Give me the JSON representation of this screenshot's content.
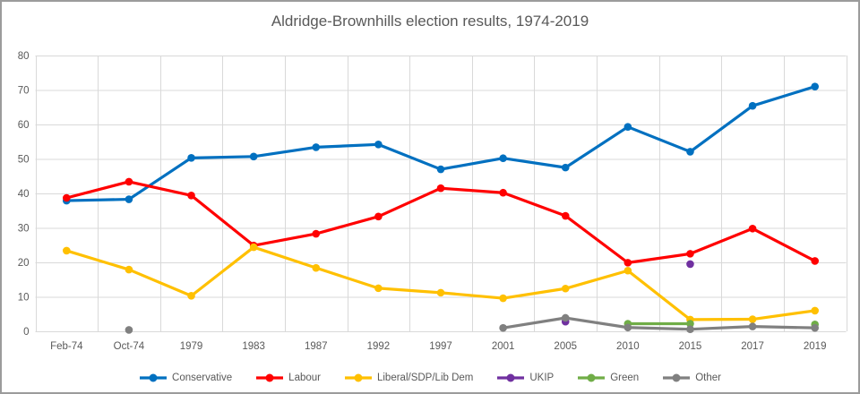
{
  "chart_data": {
    "type": "line",
    "title": "Aldridge-Brownhills election results, 1974-2019",
    "categories": [
      "Feb-74",
      "Oct-74",
      "1979",
      "1983",
      "1987",
      "1992",
      "1997",
      "2001",
      "2005",
      "2010",
      "2015",
      "2017",
      "2019"
    ],
    "series": [
      {
        "name": "Conservative",
        "color": "#0070C0",
        "values": [
          37.9,
          38.3,
          50.3,
          50.7,
          53.4,
          54.2,
          47.0,
          50.2,
          47.5,
          59.3,
          52.1,
          65.4,
          71.0
        ]
      },
      {
        "name": "Labour",
        "color": "#FF0000",
        "values": [
          38.7,
          43.4,
          39.4,
          24.9,
          28.3,
          33.3,
          41.5,
          40.2,
          33.5,
          19.9,
          22.5,
          29.8,
          20.4
        ]
      },
      {
        "name": "Liberal/SDP/Lib Dem",
        "color": "#FFC000",
        "values": [
          23.4,
          17.9,
          10.3,
          24.4,
          18.4,
          12.5,
          11.2,
          9.6,
          12.4,
          17.6,
          3.4,
          3.5,
          6.0
        ]
      },
      {
        "name": "UKIP",
        "color": "#7030A0",
        "values": [
          null,
          null,
          null,
          null,
          null,
          null,
          null,
          null,
          2.8,
          null,
          19.5,
          null,
          null
        ]
      },
      {
        "name": "Green",
        "color": "#70AD47",
        "values": [
          null,
          null,
          null,
          null,
          null,
          null,
          null,
          null,
          null,
          2.2,
          2.2,
          null,
          2.0
        ]
      },
      {
        "name": "Other",
        "color": "#808080",
        "values": [
          null,
          0.4,
          null,
          null,
          null,
          null,
          null,
          1.0,
          3.9,
          1.1,
          0.6,
          1.4,
          1.0
        ]
      }
    ],
    "ylim": [
      0,
      80
    ],
    "yticks": [
      0,
      10,
      20,
      30,
      40,
      50,
      60,
      70,
      80
    ],
    "xlabel": "",
    "ylabel": "",
    "grid": true,
    "legend_position": "bottom"
  },
  "colors": {
    "text": "#595959",
    "gridline": "#D9D9D9",
    "frame_border": "#9B9B9B",
    "background": "#FFFFFF"
  }
}
